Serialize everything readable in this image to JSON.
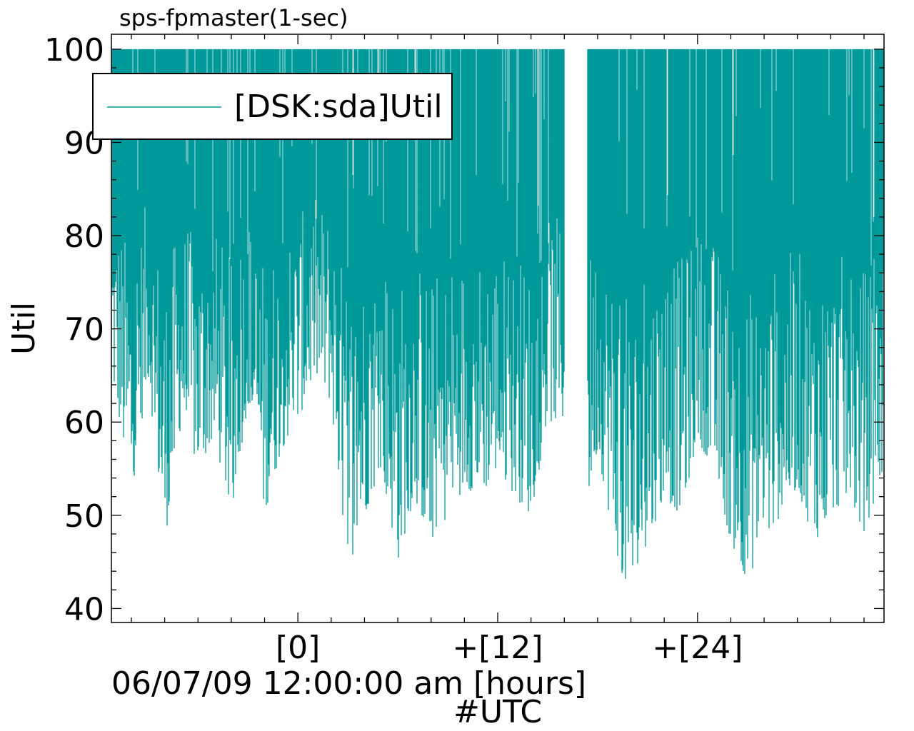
{
  "chart_data": {
    "type": "area",
    "title": "sps-fpmaster(1-sec)",
    "ylabel": "Util",
    "xlabel": "06/07/09 12:00:00 am [hours]",
    "xlabel_sub": "#UTC",
    "ylim": [
      38.5,
      101.6
    ],
    "xlim_hours": [
      -11.2,
      35.2
    ],
    "yticks": [
      40,
      50,
      60,
      70,
      80,
      90,
      100
    ],
    "ytick_labels": [
      "40",
      "50",
      "60",
      "70",
      "80",
      "90",
      "100"
    ],
    "xticks": [
      0,
      12,
      24
    ],
    "xtick_labels": [
      "[0]",
      "+[12]",
      "+[24]"
    ],
    "legend": {
      "position": "top-left",
      "entries": [
        "[DSK:sda]Util"
      ]
    },
    "series": [
      {
        "name": "[DSK:sda]Util",
        "color": "#009999",
        "style": "dense 1-second samples ranging between a fluctuating lower envelope and 100",
        "lower_envelope_x": [
          -11.2,
          -10,
          -9,
          -8,
          -7,
          -6,
          -5,
          -4,
          -3,
          -2,
          -1,
          0,
          1,
          2,
          3,
          4,
          5,
          6,
          7,
          8,
          9,
          10,
          11,
          12,
          13,
          14,
          15,
          16,
          17,
          18,
          19,
          20,
          21,
          22,
          23,
          24,
          25,
          26,
          27,
          28,
          29,
          30,
          31,
          32,
          33,
          34,
          35.2
        ],
        "lower_envelope_y": [
          65,
          52,
          65,
          47,
          60,
          55,
          58,
          50,
          62,
          50,
          57,
          60,
          65,
          62,
          44,
          50,
          55,
          45,
          52,
          47,
          50,
          53,
          52,
          55,
          52,
          50,
          60,
          60,
          48,
          57,
          47,
          40,
          47,
          52,
          50,
          58,
          55,
          47,
          43,
          47,
          50,
          53,
          47,
          50,
          52,
          48,
          55
        ],
        "upper_value": 100,
        "gap_hours": [
          16.0,
          17.4
        ]
      }
    ]
  },
  "colors": {
    "series": "#009999",
    "axis": "#000000",
    "background": "#ffffff"
  }
}
